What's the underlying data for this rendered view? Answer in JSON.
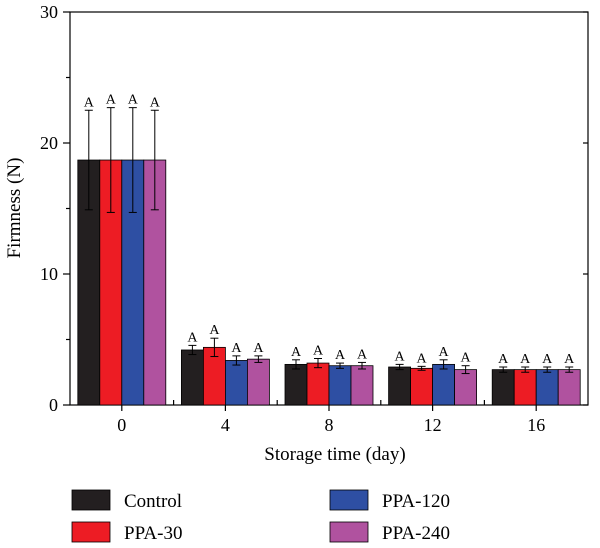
{
  "chart_data": {
    "type": "bar",
    "xlabel": "Storage time (day)",
    "ylabel": "Firmness (N)",
    "ylim": [
      0,
      30
    ],
    "yticks": [
      0,
      10,
      20,
      30
    ],
    "categories": [
      "0",
      "4",
      "8",
      "12",
      "16"
    ],
    "legend_placement": "bottom",
    "series": [
      {
        "name": "Control",
        "color": "#231f20",
        "values": [
          18.7,
          4.2,
          3.1,
          2.9,
          2.7
        ],
        "errors": [
          3.8,
          0.35,
          0.35,
          0.2,
          0.2
        ],
        "labels": [
          "A",
          "A",
          "A",
          "A",
          "A"
        ]
      },
      {
        "name": "PPA-30",
        "color": "#ed1c24",
        "values": [
          18.7,
          4.4,
          3.2,
          2.8,
          2.7
        ],
        "errors": [
          4.0,
          0.7,
          0.35,
          0.15,
          0.2
        ],
        "labels": [
          "A",
          "A",
          "A",
          "A",
          "A"
        ]
      },
      {
        "name": "PPA-120",
        "color": "#2e4fa3",
        "values": [
          18.7,
          3.4,
          3.0,
          3.1,
          2.7
        ],
        "errors": [
          4.0,
          0.35,
          0.2,
          0.35,
          0.2
        ],
        "labels": [
          "A",
          "A",
          "A",
          "A",
          "A"
        ]
      },
      {
        "name": "PPA-240",
        "color": "#b0529f",
        "values": [
          18.7,
          3.5,
          3.0,
          2.7,
          2.7
        ],
        "errors": [
          3.8,
          0.25,
          0.25,
          0.3,
          0.2
        ],
        "labels": [
          "A",
          "A",
          "A",
          "A",
          "A"
        ]
      }
    ]
  }
}
